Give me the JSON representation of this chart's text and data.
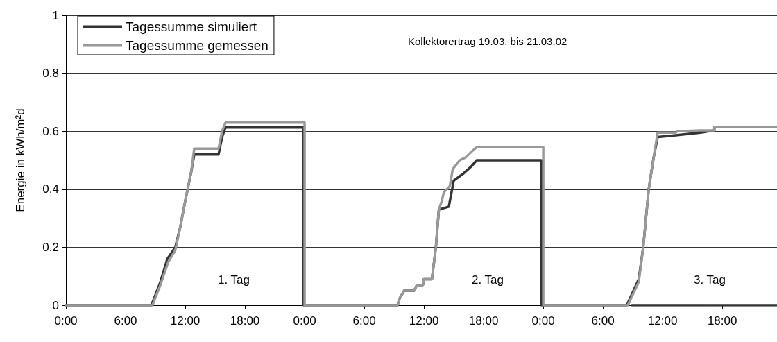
{
  "chart_data": {
    "type": "line",
    "title": "Kollektorertrag 19.03. bis 21.03.02",
    "ylabel": "Energie in kWh/m²d",
    "xlim": [
      "--03-19T00:00",
      "--03-21T23:30"
    ],
    "ylim": [
      0,
      1
    ],
    "xticks": [
      {
        "value": "--03-19T00:00",
        "label": "0:00"
      },
      {
        "value": "--03-19T06:00",
        "label": "6:00"
      },
      {
        "value": "--03-19T12:00",
        "label": "12:00"
      },
      {
        "value": "--03-19T18:00",
        "label": "18:00"
      },
      {
        "value": "--03-20T00:00",
        "label": "0:00"
      },
      {
        "value": "--03-20T06:00",
        "label": "6:00"
      },
      {
        "value": "--03-20T12:00",
        "label": "12:00"
      },
      {
        "value": "--03-20T18:00",
        "label": "18:00"
      },
      {
        "value": "--03-21T00:00",
        "label": "0:00"
      },
      {
        "value": "--03-21T06:00",
        "label": "6:00"
      },
      {
        "value": "--03-21T12:00",
        "label": "12:00"
      },
      {
        "value": "--03-21T18:00",
        "label": "18:00"
      }
    ],
    "yticks": [
      0,
      0.2,
      0.4,
      0.6,
      0.8,
      1
    ],
    "grid": "y",
    "legend": "top left",
    "marker": "none",
    "line_style": "solid",
    "annotations": [
      "1. Tag",
      "2. Tag",
      "3. Tag"
    ],
    "series": [
      {
        "name": "Tagessumme simuliert",
        "color": "#333333",
        "x": [
          "--03-19T00:00",
          "--03-19T08:36",
          "--03-19T09:30",
          "--03-19T10:12",
          "--03-19T11:00",
          "--03-19T11:30",
          "--03-19T12:00",
          "--03-19T12:36",
          "--03-19T12:54",
          "--03-19T15:21",
          "--03-19T15:42",
          "--03-19T16:03",
          "--03-19T23:54",
          "--03-19T23:54",
          "--03-20T09:21",
          "--03-20T09:30",
          "--03-20T10:00",
          "--03-20T11:00",
          "--03-20T11:18",
          "--03-20T11:54",
          "--03-20T12:00",
          "--03-20T12:48",
          "--03-20T13:12",
          "--03-20T13:30",
          "--03-20T14:30",
          "--03-20T15:00",
          "--03-20T16:00",
          "--03-20T16:48",
          "--03-20T17:18",
          "--03-20T23:48",
          "--03-20T23:48",
          "--03-21T08:24",
          "--03-21T09:36",
          "--03-21T10:03",
          "--03-21T10:36",
          "--03-21T11:06",
          "--03-21T11:30",
          "--03-21T13:00",
          "--03-21T15:48",
          "--03-21T17:12",
          "--03-21T17:12",
          "--03-21T23:30"
        ],
        "values": [
          0,
          0,
          0.08,
          0.16,
          0.2,
          0.27,
          0.36,
          0.46,
          0.52,
          0.52,
          0.58,
          0.613,
          0.613,
          0,
          0,
          0.02,
          0.05,
          0.05,
          0.07,
          0.07,
          0.09,
          0.09,
          0.2,
          0.33,
          0.34,
          0.43,
          0.455,
          0.48,
          0.5,
          0.5,
          0,
          0,
          0.09,
          0.2,
          0.4,
          0.51,
          0.58,
          0.585,
          0.595,
          0.603,
          0.615,
          0.615
        ]
      },
      {
        "name": "Tagessumme gemessen",
        "color": "#999999",
        "x": [
          "--03-19T00:00",
          "--03-19T08:42",
          "--03-19T09:30",
          "--03-19T10:18",
          "--03-19T11:00",
          "--03-19T11:30",
          "--03-19T12:00",
          "--03-19T12:36",
          "--03-19T12:54",
          "--03-19T15:21",
          "--03-19T15:42",
          "--03-19T16:03",
          "--03-20T00:00",
          "--03-20T00:00",
          "--03-20T09:21",
          "--03-20T09:30",
          "--03-20T10:00",
          "--03-20T11:00",
          "--03-20T11:18",
          "--03-20T11:54",
          "--03-20T12:00",
          "--03-20T12:48",
          "--03-20T13:12",
          "--03-20T13:30",
          "--03-20T13:48",
          "--03-20T14:00",
          "--03-20T14:36",
          "--03-20T14:54",
          "--03-20T15:36",
          "--03-20T16:12",
          "--03-20T16:48",
          "--03-20T17:18",
          "--03-21T00:00",
          "--03-21T00:00",
          "--03-21T08:30",
          "--03-21T09:36",
          "--03-21T10:03",
          "--03-21T10:36",
          "--03-21T11:06",
          "--03-21T11:30",
          "--03-21T13:18",
          "--03-21T13:30",
          "--03-21T15:48",
          "--03-21T17:12",
          "--03-21T17:12",
          "--03-21T23:30"
        ],
        "values": [
          0,
          0,
          0.07,
          0.15,
          0.19,
          0.27,
          0.36,
          0.46,
          0.54,
          0.54,
          0.6,
          0.63,
          0.63,
          0,
          0,
          0.02,
          0.05,
          0.05,
          0.07,
          0.07,
          0.09,
          0.09,
          0.2,
          0.33,
          0.36,
          0.39,
          0.41,
          0.47,
          0.5,
          0.51,
          0.53,
          0.545,
          0.545,
          0,
          0,
          0.08,
          0.2,
          0.4,
          0.51,
          0.595,
          0.595,
          0.6,
          0.603,
          0.603,
          0.615,
          0.615
        ]
      },
      {
        "color": "#333333",
        "x": [
          "--03-21T08:54",
          "--03-21T23:30"
        ],
        "values": [
          0,
          0
        ]
      }
    ]
  }
}
